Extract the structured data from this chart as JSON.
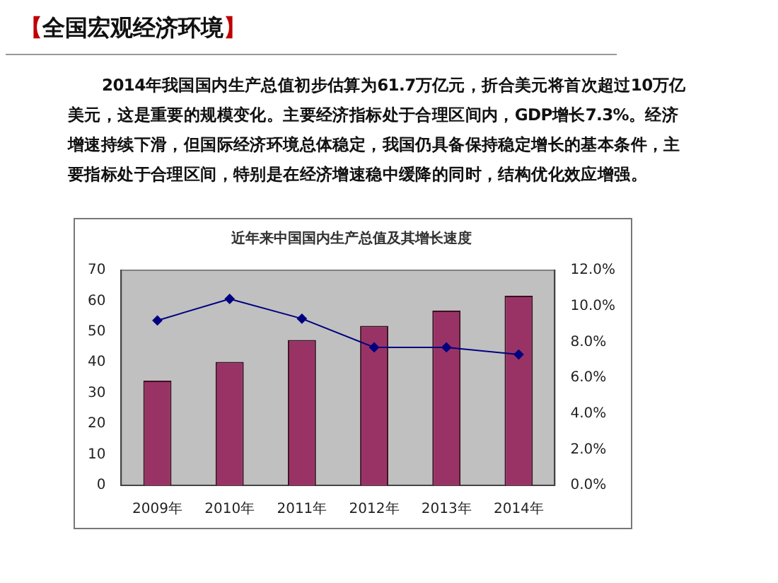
{
  "chart_data": {
    "type": "bar",
    "title": "近年来中国国内生产总值及其增长速度",
    "annotations": [
      "【全国宏观经济环境】",
      "2014年我国国内生产总值初步估算为61.7万亿元，折合美元将首次超过10万亿美元，这是重要的规模变化。主要经济指标处于合理区间内，GDP增长7.3%。经济增速持续下滑，但国际经济环境总体稳定，我国仍具备保持稳定增长的基本条件，主要指标处于合理区间，特别是在经济增速稳中缓降的同时，结构优化效应增强。"
    ],
    "categories": [
      "2009年",
      "2010年",
      "2011年",
      "2012年",
      "2013年",
      "2014年"
    ],
    "series": [
      {
        "color": "#993366",
        "values": [
          34.1,
          40.2,
          47.3,
          51.9,
          56.9,
          61.7
        ]
      },
      {
        "type": "line",
        "color": "#000080",
        "axis": "y2",
        "marker": "diamond",
        "values": [
          9.2,
          10.4,
          9.3,
          7.7,
          7.7,
          7.3
        ]
      }
    ],
    "ylim": [
      0,
      70
    ],
    "yticks": [
      0,
      10,
      20,
      30,
      40,
      50,
      60,
      70
    ],
    "y2lim": [
      0,
      12
    ],
    "y2ticks": [
      {
        "value": 0,
        "label": "0.0%"
      },
      {
        "value": 2,
        "label": "2.0%"
      },
      {
        "value": 4,
        "label": "4.0%"
      },
      {
        "value": 6,
        "label": "6.0%"
      },
      {
        "value": 8,
        "label": "8.0%"
      },
      {
        "value": 10,
        "label": "10.0%"
      },
      {
        "value": 12,
        "label": "12.0%"
      }
    ],
    "grid": false,
    "legend": false
  }
}
